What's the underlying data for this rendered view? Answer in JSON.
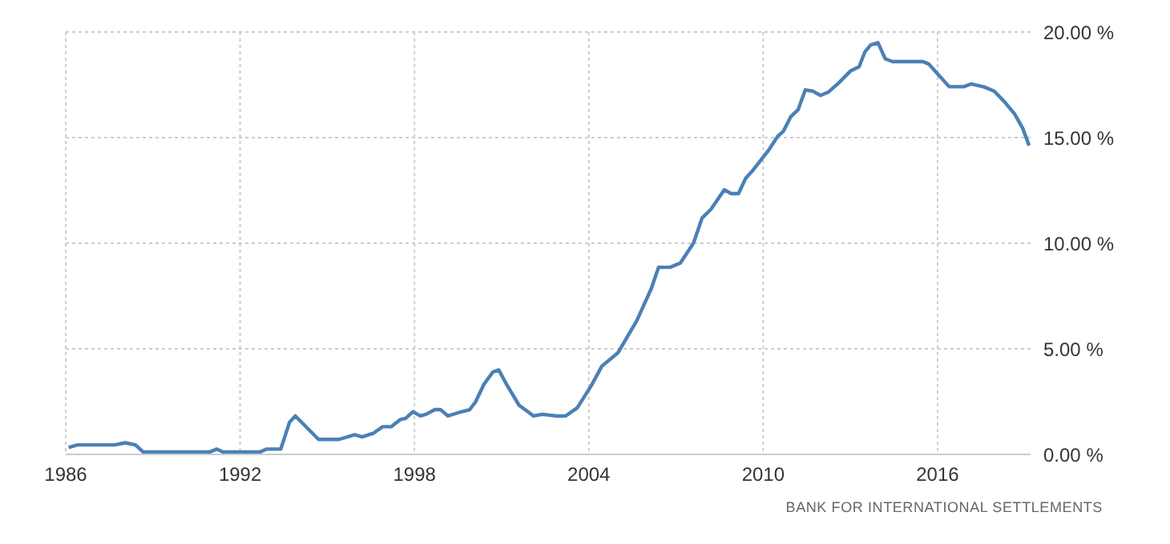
{
  "chart_data": {
    "type": "line",
    "x": [
      1986.1,
      1986.4,
      1987.68,
      1988.05,
      1988.4,
      1988.66,
      1990.96,
      1991.2,
      1991.4,
      1992.7,
      1992.9,
      1993.4,
      1993.7,
      1993.9,
      1994.7,
      1995.4,
      1995.95,
      1996.2,
      1996.6,
      1996.9,
      1997.2,
      1997.5,
      1997.7,
      1997.95,
      1998.2,
      1998.4,
      1998.7,
      1998.9,
      1999.15,
      1999.5,
      1999.9,
      2000.1,
      2000.4,
      2000.7,
      2000.9,
      2001.2,
      2001.6,
      2002.1,
      2002.4,
      2002.9,
      2003.2,
      2003.6,
      2004.1,
      2004.45,
      2005.0,
      2005.65,
      2006.15,
      2006.4,
      2006.8,
      2007.15,
      2007.6,
      2007.9,
      2008.2,
      2008.66,
      2008.9,
      2009.15,
      2009.4,
      2009.65,
      2010.2,
      2010.5,
      2010.7,
      2010.95,
      2011.2,
      2011.45,
      2011.7,
      2011.97,
      2012.25,
      2012.6,
      2013.0,
      2013.3,
      2013.5,
      2013.7,
      2013.95,
      2014.2,
      2014.45,
      2015.5,
      2015.7,
      2015.95,
      2016.4,
      2016.9,
      2017.15,
      2017.6,
      2017.95,
      2018.3,
      2018.66,
      2018.93,
      2019.15
    ],
    "series": [
      {
        "color": "#4a80b6",
        "values": [
          0.33,
          0.45,
          0.45,
          0.55,
          0.45,
          0.12,
          0.12,
          0.25,
          0.12,
          0.12,
          0.25,
          0.25,
          1.52,
          1.82,
          0.71,
          0.71,
          0.93,
          0.83,
          1.01,
          1.31,
          1.31,
          1.64,
          1.71,
          2.02,
          1.82,
          1.9,
          2.12,
          2.12,
          1.82,
          1.97,
          2.12,
          2.48,
          3.34,
          3.9,
          4.0,
          3.24,
          2.33,
          1.82,
          1.9,
          1.82,
          1.82,
          2.2,
          3.29,
          4.18,
          4.81,
          6.33,
          7.85,
          8.86,
          8.86,
          9.06,
          10.0,
          11.2,
          11.6,
          12.53,
          12.35,
          12.35,
          13.08,
          13.46,
          14.43,
          15.06,
          15.31,
          15.99,
          16.32,
          17.26,
          17.2,
          17.0,
          17.16,
          17.59,
          18.15,
          18.35,
          19.06,
          19.39,
          19.49,
          18.73,
          18.6,
          18.6,
          18.48,
          18.1,
          17.41,
          17.41,
          17.54,
          17.4,
          17.2,
          16.7,
          16.1,
          15.44,
          14.62
        ]
      }
    ],
    "xlim": [
      1986,
      2019.2
    ],
    "xticks": [
      1986,
      1992,
      1998,
      2004,
      2010,
      2016
    ],
    "ylim": [
      0,
      20
    ],
    "yticks": [
      {
        "value": 0,
        "label": "0.00 %"
      },
      {
        "value": 5,
        "label": "5.00 %"
      },
      {
        "value": 10,
        "label": "10.00 %"
      },
      {
        "value": 15,
        "label": "15.00 %"
      },
      {
        "value": 20,
        "label": "20.00 %"
      }
    ],
    "grid": true,
    "marker": "none",
    "line_style": "solid",
    "annotations": [
      "BANK FOR INTERNATIONAL SETTLEMENTS"
    ]
  }
}
